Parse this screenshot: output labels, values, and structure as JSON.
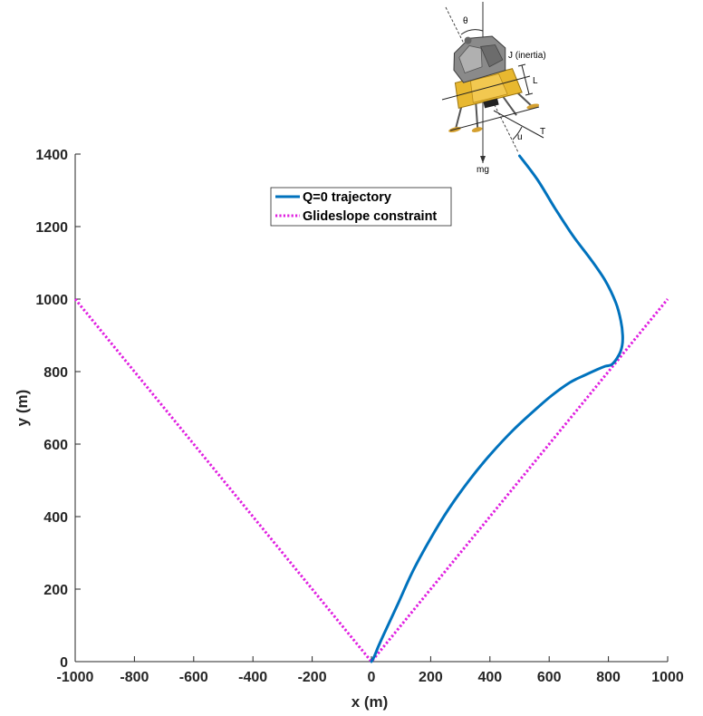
{
  "chart_data": {
    "type": "line",
    "title": "",
    "xlabel": "x (m)",
    "ylabel": "y (m)",
    "xlim": [
      -1000,
      1000
    ],
    "ylim": [
      0,
      1400
    ],
    "xticks": [
      -1000,
      -800,
      -600,
      -400,
      -200,
      0,
      200,
      400,
      600,
      800,
      1000
    ],
    "yticks": [
      0,
      200,
      400,
      600,
      800,
      1000,
      1200,
      1400
    ],
    "grid": false,
    "legend_position": "top-center",
    "series": [
      {
        "name": "Q=0 trajectory",
        "color": "#0072BD",
        "style": "solid",
        "points": [
          [
            500,
            1395
          ],
          [
            560,
            1330
          ],
          [
            620,
            1250
          ],
          [
            680,
            1175
          ],
          [
            740,
            1110
          ],
          [
            790,
            1050
          ],
          [
            825,
            990
          ],
          [
            842,
            940
          ],
          [
            848,
            900
          ],
          [
            846,
            870
          ],
          [
            835,
            845
          ],
          [
            812,
            820
          ],
          [
            790,
            815
          ],
          [
            760,
            805
          ],
          [
            720,
            790
          ],
          [
            670,
            770
          ],
          [
            610,
            735
          ],
          [
            560,
            700
          ],
          [
            480,
            640
          ],
          [
            400,
            570
          ],
          [
            330,
            500
          ],
          [
            260,
            420
          ],
          [
            200,
            340
          ],
          [
            140,
            250
          ],
          [
            90,
            160
          ],
          [
            50,
            90
          ],
          [
            25,
            45
          ],
          [
            10,
            15
          ],
          [
            0,
            0
          ]
        ]
      },
      {
        "name": "Glideslope constraint",
        "color": "#E020E0",
        "style": "dotted",
        "points": [
          [
            -1000,
            1000
          ],
          [
            0,
            0
          ],
          [
            1000,
            1000
          ]
        ]
      }
    ]
  },
  "inset": {
    "labels": {
      "theta": "θ",
      "inertia": "J (inertia)",
      "length": "L",
      "thrust": "T",
      "control": "u",
      "weight": "mg"
    },
    "colors": {
      "body_gray": "#8a8a8a",
      "foil_gold": "#e8b830",
      "leg_dark": "#555555"
    }
  }
}
